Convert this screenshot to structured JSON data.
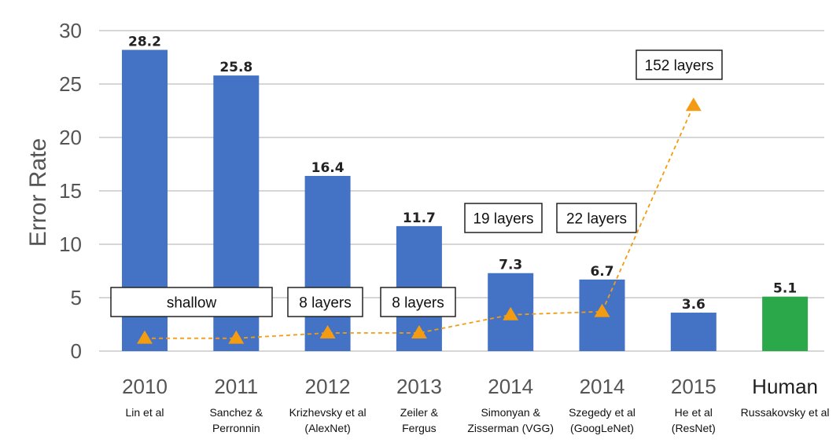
{
  "chart_data": {
    "type": "bar",
    "ylabel": "Error Rate",
    "xlabel": "",
    "ylim": [
      0,
      30
    ],
    "yticks": [
      0,
      5,
      10,
      15,
      20,
      25,
      30
    ],
    "grid": true,
    "legend": "none",
    "categories": [
      {
        "year": "2010",
        "authors": [
          "Lin et al"
        ],
        "value": 28.2,
        "value_label": "28.2",
        "color": "#4472c4"
      },
      {
        "year": "2011",
        "authors": [
          "Sanchez &",
          "Perronnin"
        ],
        "value": 25.8,
        "value_label": "25.8",
        "color": "#4472c4"
      },
      {
        "year": "2012",
        "authors": [
          "Krizhevsky et al",
          "(AlexNet)"
        ],
        "value": 16.4,
        "value_label": "16.4",
        "color": "#4472c4"
      },
      {
        "year": "2013",
        "authors": [
          "Zeiler &",
          "Fergus"
        ],
        "value": 11.7,
        "value_label": "11.7",
        "color": "#4472c4"
      },
      {
        "year": "2014",
        "authors": [
          "Simonyan &",
          "Zisserman (VGG)"
        ],
        "value": 7.3,
        "value_label": "7.3",
        "color": "#4472c4"
      },
      {
        "year": "2014",
        "authors": [
          "Szegedy et al",
          "(GoogLeNet)"
        ],
        "value": 6.7,
        "value_label": "6.7",
        "color": "#4472c4"
      },
      {
        "year": "2015",
        "authors": [
          "He et al",
          "(ResNet)"
        ],
        "value": 3.6,
        "value_label": "3.6",
        "color": "#4472c4"
      },
      {
        "year": "Human",
        "authors": [
          "Russakovsky et al"
        ],
        "value": 5.1,
        "value_label": "5.1",
        "color": "#2ba84a"
      }
    ],
    "depth_line": {
      "color": "#f39c12",
      "style": "dashed",
      "marker": "triangle",
      "values": [
        1.2,
        1.2,
        1.7,
        1.7,
        3.4,
        3.7,
        23.0
      ]
    },
    "annotations": [
      {
        "text": "shallow"
      },
      {
        "text": "8 layers"
      },
      {
        "text": "8 layers"
      },
      {
        "text": "19 layers"
      },
      {
        "text": "22 layers"
      },
      {
        "text": "152 layers"
      }
    ]
  }
}
